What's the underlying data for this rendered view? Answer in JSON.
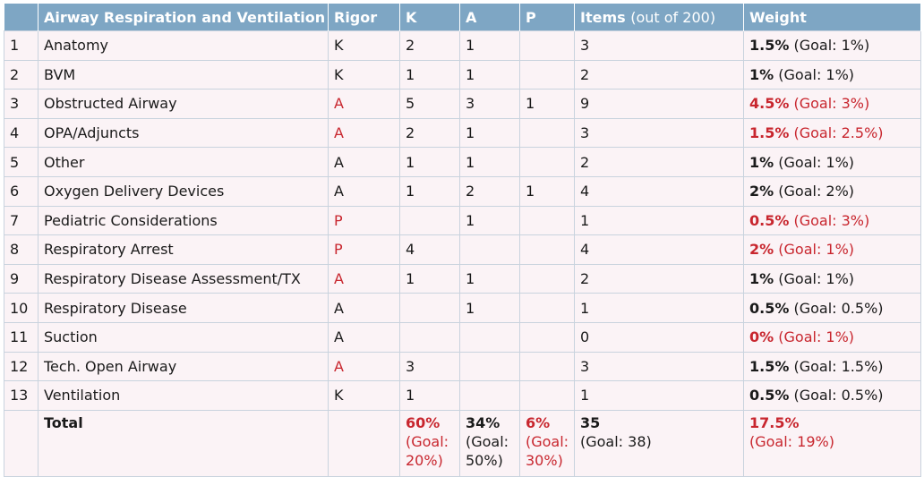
{
  "headers": [
    "",
    "Airway Respiration and Ventilation",
    "Rigor",
    "K",
    "A",
    "P",
    "Items",
    "(out of 200)",
    "Weight"
  ],
  "rows": [
    {
      "n": "1",
      "topic": "Anatomy",
      "rigor": "K",
      "k": "2",
      "a": "1",
      "p": "",
      "items": "3",
      "weight": "1.5%",
      "goal": "(Goal: 1%)",
      "rigor_red": false,
      "weight_red": false
    },
    {
      "n": "2",
      "topic": "BVM",
      "rigor": "K",
      "k": "1",
      "a": "1",
      "p": "",
      "items": "2",
      "weight": "1%",
      "goal": "(Goal: 1%)",
      "rigor_red": false,
      "weight_red": false
    },
    {
      "n": "3",
      "topic": "Obstructed Airway",
      "rigor": "A",
      "k": "5",
      "a": "3",
      "p": "1",
      "items": "9",
      "weight": "4.5%",
      "goal": "(Goal: 3%)",
      "rigor_red": true,
      "weight_red": true
    },
    {
      "n": "4",
      "topic": "OPA/Adjuncts",
      "rigor": "A",
      "k": "2",
      "a": "1",
      "p": "",
      "items": "3",
      "weight": "1.5%",
      "goal": "(Goal: 2.5%)",
      "rigor_red": true,
      "weight_red": true
    },
    {
      "n": "5",
      "topic": "Other",
      "rigor": "A",
      "k": "1",
      "a": "1",
      "p": "",
      "items": "2",
      "weight": "1%",
      "goal": "(Goal: 1%)",
      "rigor_red": false,
      "weight_red": false
    },
    {
      "n": "6",
      "topic": "Oxygen Delivery Devices",
      "rigor": "A",
      "k": "1",
      "a": "2",
      "p": "1",
      "items": "4",
      "weight": "2%",
      "goal": "(Goal: 2%)",
      "rigor_red": false,
      "weight_red": false
    },
    {
      "n": "7",
      "topic": "Pediatric Considerations",
      "rigor": "P",
      "k": "",
      "a": "1",
      "p": "",
      "items": "1",
      "weight": "0.5%",
      "goal": "(Goal: 3%)",
      "rigor_red": true,
      "weight_red": true
    },
    {
      "n": "8",
      "topic": "Respiratory Arrest",
      "rigor": "P",
      "k": "4",
      "a": "",
      "p": "",
      "items": "4",
      "weight": "2%",
      "goal": "(Goal: 1%)",
      "rigor_red": true,
      "weight_red": true
    },
    {
      "n": "9",
      "topic": "Respiratory Disease Assessment/TX",
      "rigor": "A",
      "k": "1",
      "a": "1",
      "p": "",
      "items": "2",
      "weight": "1%",
      "goal": "(Goal: 1%)",
      "rigor_red": true,
      "weight_red": false
    },
    {
      "n": "10",
      "topic": "Respiratory Disease",
      "rigor": "A",
      "k": "",
      "a": "1",
      "p": "",
      "items": "1",
      "weight": "0.5%",
      "goal": "(Goal: 0.5%)",
      "rigor_red": false,
      "weight_red": false
    },
    {
      "n": "11",
      "topic": "Suction",
      "rigor": "A",
      "k": "",
      "a": "",
      "p": "",
      "items": "0",
      "weight": "0%",
      "goal": "(Goal: 1%)",
      "rigor_red": false,
      "weight_red": true
    },
    {
      "n": "12",
      "topic": "Tech. Open Airway",
      "rigor": "A",
      "k": "3",
      "a": "",
      "p": "",
      "items": "3",
      "weight": "1.5%",
      "goal": "(Goal: 1.5%)",
      "rigor_red": true,
      "weight_red": false
    },
    {
      "n": "13",
      "topic": "Ventilation",
      "rigor": "K",
      "k": "1",
      "a": "",
      "p": "",
      "items": "1",
      "weight": "0.5%",
      "goal": "(Goal: 0.5%)",
      "rigor_red": false,
      "weight_red": false
    }
  ],
  "total": {
    "label": "Total",
    "k": "60%",
    "k_goal": "(Goal: 20%)",
    "a": "34%",
    "a_goal": "(Goal: 50%)",
    "p": "6%",
    "p_goal": "(Goal: 30%)",
    "items": "35",
    "items_goal": "(Goal: 38)",
    "weight": "17.5%",
    "weight_goal": "(Goal: 19%)"
  },
  "colors": {
    "header_bg": "#7ea6c4",
    "row_bg": "#fbf3f6",
    "alert_red": "#c8262e"
  }
}
